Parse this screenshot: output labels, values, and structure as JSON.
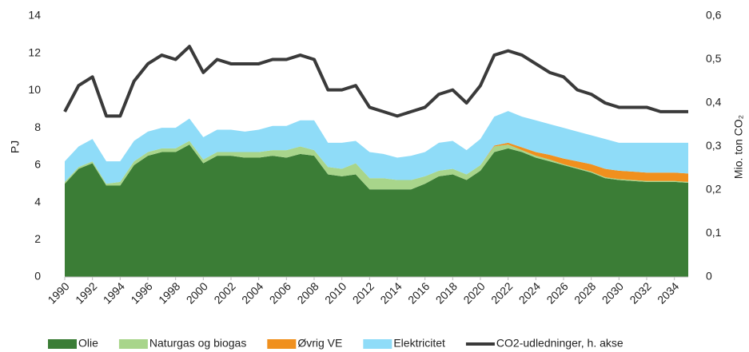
{
  "chart_data": {
    "type": "area",
    "y_label": "PJ",
    "y2_label": "Mio. ton CO₂",
    "x": [
      1990,
      1991,
      1992,
      1993,
      1994,
      1995,
      1996,
      1997,
      1998,
      1999,
      2000,
      2001,
      2002,
      2003,
      2004,
      2005,
      2006,
      2007,
      2008,
      2009,
      2010,
      2011,
      2012,
      2013,
      2014,
      2015,
      2016,
      2017,
      2018,
      2019,
      2020,
      2021,
      2022,
      2023,
      2024,
      2025,
      2026,
      2027,
      2028,
      2029,
      2030,
      2031,
      2032,
      2033,
      2034,
      2035
    ],
    "xlim": [
      1990,
      2035
    ],
    "xticks": [
      1990,
      1992,
      1994,
      1996,
      1998,
      2000,
      2002,
      2004,
      2006,
      2008,
      2010,
      2012,
      2014,
      2016,
      2018,
      2020,
      2022,
      2024,
      2026,
      2028,
      2030,
      2032,
      2034
    ],
    "ylim": [
      0,
      14
    ],
    "yticks": [
      0,
      2,
      4,
      6,
      8,
      10,
      12,
      14
    ],
    "y2lim": [
      0,
      0.6
    ],
    "y2ticks": [
      0,
      {
        "value": 0.1,
        "label": "0,1"
      },
      {
        "value": 0.2,
        "label": "0,2"
      },
      {
        "value": 0.3,
        "label": "0,3"
      },
      {
        "value": 0.4,
        "label": "0,4"
      },
      {
        "value": 0.5,
        "label": "0,5"
      },
      {
        "value": 0.6,
        "label": "0,6"
      }
    ],
    "legend": "bottom",
    "series": [
      {
        "name": "Olie",
        "type": "area",
        "color": "#3b7d36",
        "values": [
          5.0,
          5.8,
          6.1,
          4.9,
          4.9,
          6.0,
          6.5,
          6.7,
          6.7,
          7.1,
          6.1,
          6.5,
          6.5,
          6.4,
          6.4,
          6.5,
          6.4,
          6.6,
          6.5,
          5.5,
          5.4,
          5.5,
          4.7,
          4.7,
          4.7,
          4.7,
          5.0,
          5.4,
          5.5,
          5.2,
          5.7,
          6.7,
          6.9,
          6.7,
          6.4,
          6.2,
          6.0,
          5.8,
          5.6,
          5.3,
          5.2,
          5.15,
          5.1,
          5.1,
          5.1,
          5.05
        ]
      },
      {
        "name": "Naturgas og biogas",
        "type": "area",
        "color": "#a8d58b",
        "values": [
          0.1,
          0.1,
          0.1,
          0.1,
          0.2,
          0.2,
          0.2,
          0.2,
          0.2,
          0.2,
          0.2,
          0.2,
          0.2,
          0.3,
          0.3,
          0.3,
          0.4,
          0.4,
          0.3,
          0.4,
          0.4,
          0.6,
          0.6,
          0.6,
          0.5,
          0.5,
          0.4,
          0.3,
          0.3,
          0.3,
          0.3,
          0.3,
          0.2,
          0.1,
          0.1,
          0.1,
          0.05,
          0.05,
          0.05,
          0.05,
          0.05,
          0.05,
          0.05,
          0.05,
          0.05,
          0.05
        ]
      },
      {
        "name": "Øvrig VE",
        "type": "area",
        "color": "#f0901e",
        "values": [
          0,
          0,
          0,
          0,
          0,
          0,
          0,
          0,
          0,
          0,
          0,
          0,
          0,
          0,
          0,
          0,
          0,
          0,
          0,
          0,
          0,
          0,
          0,
          0,
          0,
          0,
          0,
          0,
          0,
          0,
          0,
          0.05,
          0.1,
          0.15,
          0.2,
          0.25,
          0.3,
          0.35,
          0.4,
          0.45,
          0.45,
          0.45,
          0.45,
          0.45,
          0.45,
          0.45
        ]
      },
      {
        "name": "Elektricitet",
        "type": "area",
        "color": "#8fdcf8",
        "values": [
          1.1,
          1.1,
          1.2,
          1.2,
          1.1,
          1.1,
          1.1,
          1.1,
          1.1,
          1.2,
          1.2,
          1.2,
          1.2,
          1.1,
          1.2,
          1.3,
          1.3,
          1.4,
          1.6,
          1.3,
          1.4,
          1.2,
          1.4,
          1.3,
          1.2,
          1.3,
          1.3,
          1.5,
          1.5,
          1.3,
          1.4,
          1.55,
          1.7,
          1.65,
          1.7,
          1.65,
          1.65,
          1.6,
          1.55,
          1.6,
          1.5,
          1.55,
          1.6,
          1.6,
          1.6,
          1.65
        ]
      },
      {
        "name": "CO2-udledninger, h. akse",
        "type": "line",
        "axis": "y2",
        "color": "#3a3a3a",
        "values": [
          0.38,
          0.44,
          0.46,
          0.37,
          0.37,
          0.45,
          0.49,
          0.51,
          0.5,
          0.53,
          0.47,
          0.5,
          0.49,
          0.49,
          0.49,
          0.5,
          0.5,
          0.51,
          0.5,
          0.43,
          0.43,
          0.44,
          0.39,
          0.38,
          0.37,
          0.38,
          0.39,
          0.42,
          0.43,
          0.4,
          0.44,
          0.51,
          0.52,
          0.51,
          0.49,
          0.47,
          0.46,
          0.43,
          0.42,
          0.4,
          0.39,
          0.39,
          0.39,
          0.38,
          0.38,
          0.38
        ]
      }
    ]
  }
}
